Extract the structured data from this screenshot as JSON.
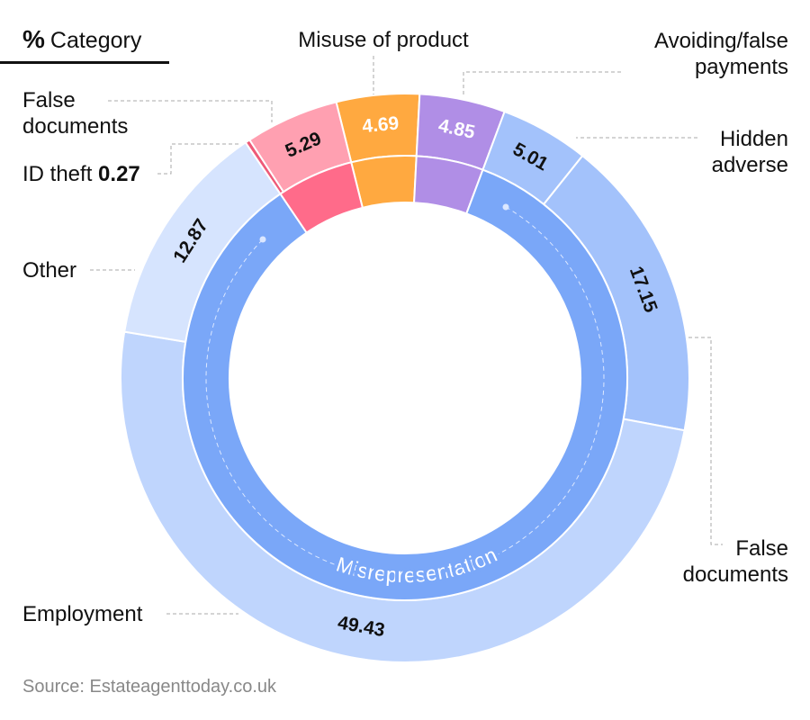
{
  "header": {
    "symbol": "%",
    "title": "Category"
  },
  "chart_data": {
    "type": "sunburst",
    "groups": [
      {
        "color": "#ffa940",
        "children": [
          {
            "name": "Misuse of product",
            "value": 4.69,
            "color": "#ffa940",
            "label_color": "#ffffff"
          }
        ]
      },
      {
        "color": "#b08ee6",
        "children": [
          {
            "name": "Avoiding/false\npayments",
            "value": 4.85,
            "color": "#b08ee6",
            "label_color": "#ffffff"
          }
        ]
      },
      {
        "name": "Misrepresentation",
        "color": "#7aa7f8",
        "children": [
          {
            "name": "Hidden\nadverse",
            "value": 5.01,
            "color": "#a3c2fb",
            "label_color": "#111111"
          },
          {
            "name": "False\ndocuments",
            "value": 17.15,
            "color": "#a3c2fb",
            "label_color": "#111111"
          },
          {
            "name": "Employment",
            "value": 49.43,
            "color": "#bfd5fd",
            "label_color": "#111111"
          },
          {
            "name": "Other",
            "value": 12.87,
            "color": "#d6e4fe",
            "label_color": "#111111"
          }
        ]
      },
      {
        "color": "#ff6b8a",
        "children": [
          {
            "name": "ID theft",
            "value": 0.27,
            "color": "#ee5a78",
            "label_color": "#111111",
            "value_inline": true
          },
          {
            "name": "False\ndocuments",
            "value": 5.29,
            "color": "#ffa0b1",
            "label_color": "#111111"
          }
        ]
      }
    ]
  },
  "source": "Source: Estateagenttoday.co.uk"
}
